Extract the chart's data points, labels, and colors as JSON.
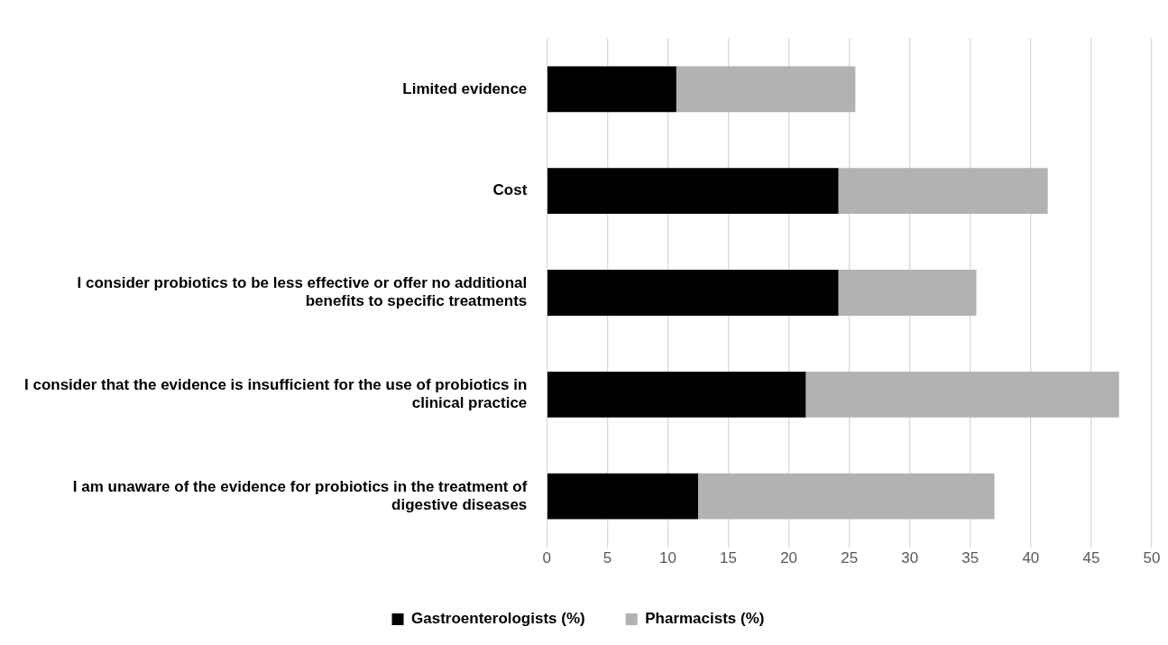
{
  "chart_data": {
    "type": "bar",
    "orientation": "horizontal",
    "stacked": true,
    "categories": [
      "Limited evidence",
      "Cost",
      "I consider probiotics to be less effective or offer no additional benefits to specific treatments",
      "I consider that the evidence is insufficient for the use of probiotics in clinical practice",
      "I am unaware of the evidence for probiotics in the treatment of digestive diseases"
    ],
    "series": [
      {
        "name": "Gastroenterologists (%)",
        "color": "#000000",
        "values": [
          10.7,
          24.1,
          24.1,
          21.4,
          12.5
        ]
      },
      {
        "name": "Pharmacists (%)",
        "color": "#b2b2b2",
        "values": [
          14.8,
          17.3,
          11.4,
          25.9,
          24.5
        ]
      }
    ],
    "xlim": [
      0,
      50
    ],
    "xticks": [
      0,
      5,
      10,
      15,
      20,
      25,
      30,
      35,
      40,
      45,
      50
    ],
    "grid": "x",
    "legend": "bottom"
  }
}
